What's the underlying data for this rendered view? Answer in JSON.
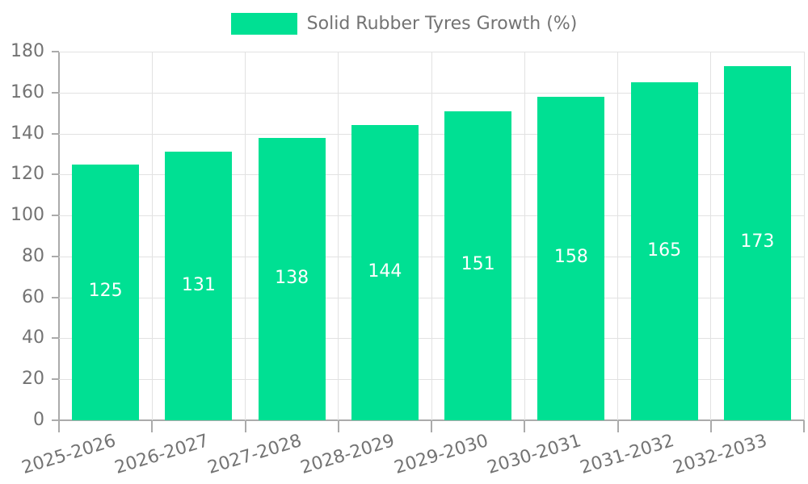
{
  "chart_data": {
    "type": "bar",
    "title": "",
    "legend": "Solid Rubber Tyres Growth (%)",
    "legend_position": "top-center",
    "categories": [
      "2025-2026",
      "2026-2027",
      "2027-2028",
      "2028-2029",
      "2029-2030",
      "2030-2031",
      "2031-2032",
      "2032-2033"
    ],
    "values": [
      125,
      131,
      138,
      144,
      151,
      158,
      165,
      173
    ],
    "xlabel": "",
    "ylabel": "",
    "ylim": [
      0,
      180
    ],
    "ytick_step": 20,
    "ytick_labels": [
      "0",
      "20",
      "40",
      "60",
      "80",
      "100",
      "120",
      "140",
      "160",
      "180"
    ],
    "grid": true,
    "value_labels_inside_bars": true,
    "colors": {
      "bar": "#00E093",
      "value_label": "#ffffff",
      "axis_text": "#737373",
      "axis_line": "#ababab",
      "gridline": "#e2e2e2",
      "background": "#ffffff"
    }
  }
}
